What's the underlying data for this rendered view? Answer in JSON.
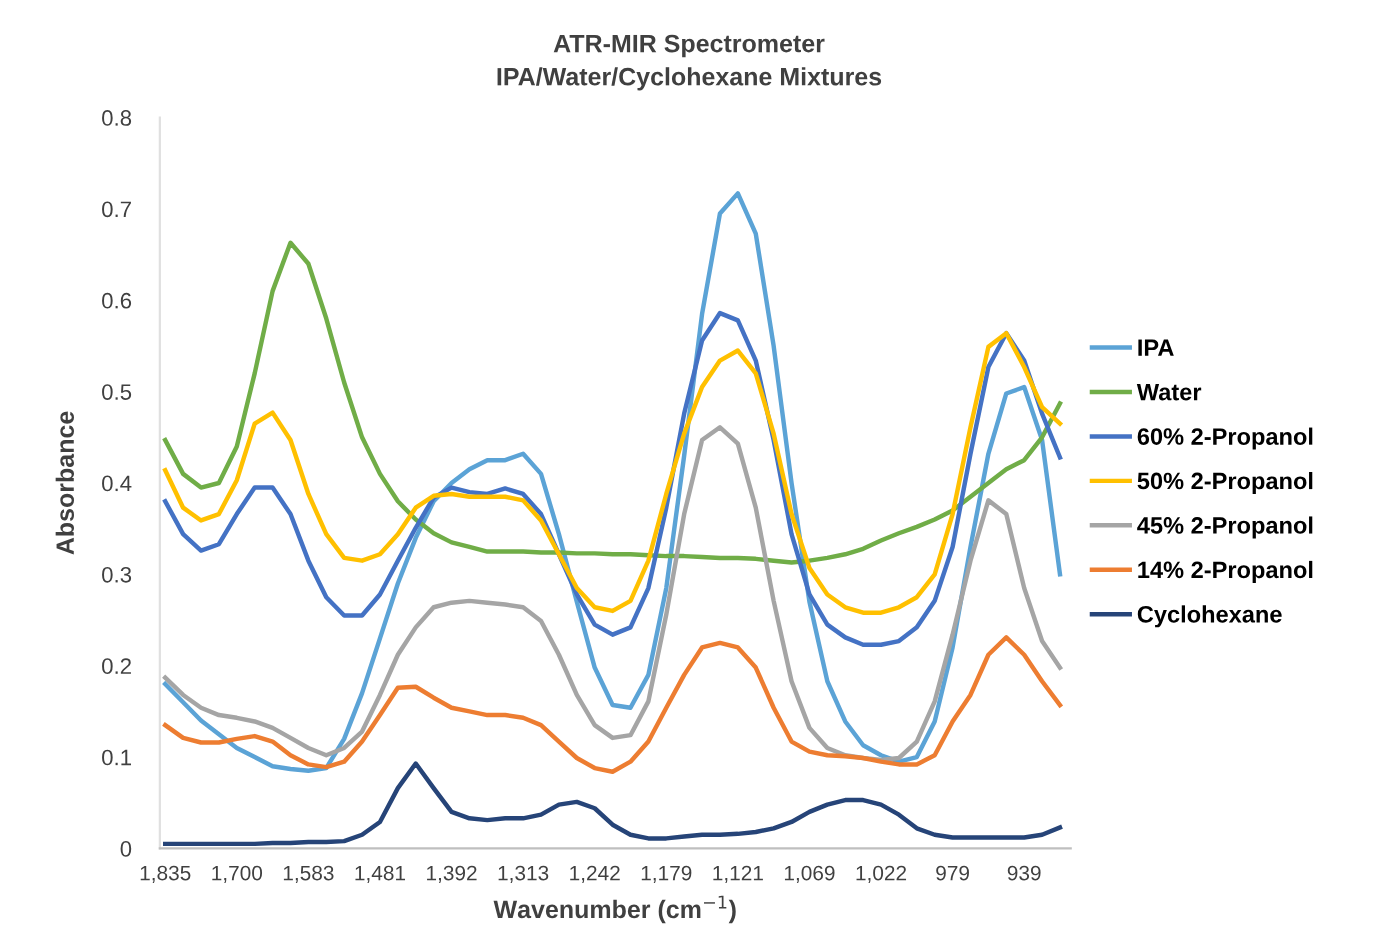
{
  "chart_data": {
    "type": "line",
    "title": "ATR-MIR Spectrometer",
    "subtitle": "IPA/Water/Cyclohexane Mixtures",
    "xlabel": "Wavenumber (cm$^{−1}$)",
    "ylabel": "Absorbance",
    "categories": [
      "1,835",
      null,
      null,
      null,
      "1,700",
      null,
      null,
      null,
      "1,583",
      null,
      null,
      null,
      "1,481",
      null,
      null,
      null,
      "1,392",
      null,
      null,
      null,
      "1,313",
      null,
      null,
      null,
      "1,242",
      null,
      null,
      null,
      "1,179",
      null,
      null,
      null,
      "1,121",
      null,
      null,
      null,
      "1,069",
      null,
      null,
      null,
      "1,022",
      null,
      null,
      null,
      "979",
      null,
      null,
      null,
      "939",
      null,
      null
    ],
    "ylim": [
      0,
      0.8
    ],
    "yticks": [
      0,
      0.1,
      0.2,
      0.3,
      0.4,
      0.5,
      0.6,
      0.7,
      0.8
    ],
    "grid": false,
    "legend": "right",
    "marker": "none",
    "line_style": "solid",
    "series": [
      {
        "name": "IPA",
        "color": "#5ba3d6",
        "values": [
          0.18,
          0.16,
          0.14,
          0.125,
          0.11,
          0.1,
          0.09,
          0.087,
          0.085,
          0.088,
          0.12,
          0.17,
          0.23,
          0.29,
          0.34,
          0.38,
          0.4,
          0.415,
          0.425,
          0.425,
          0.432,
          0.41,
          0.344,
          0.27,
          0.198,
          0.157,
          0.154,
          0.19,
          0.285,
          0.43,
          0.585,
          0.695,
          0.717,
          0.673,
          0.55,
          0.4,
          0.27,
          0.183,
          0.139,
          0.113,
          0.102,
          0.095,
          0.1,
          0.139,
          0.22,
          0.33,
          0.432,
          0.498,
          0.505,
          0.447,
          0.3
        ]
      },
      {
        "name": "Water",
        "color": "#70ad47",
        "values": [
          0.447,
          0.41,
          0.395,
          0.4,
          0.44,
          0.52,
          0.61,
          0.663,
          0.64,
          0.58,
          0.51,
          0.45,
          0.41,
          0.38,
          0.36,
          0.345,
          0.335,
          0.33,
          0.325,
          0.325,
          0.325,
          0.324,
          0.324,
          0.323,
          0.323,
          0.322,
          0.322,
          0.321,
          0.32,
          0.32,
          0.319,
          0.318,
          0.318,
          0.317,
          0.315,
          0.313,
          0.315,
          0.318,
          0.322,
          0.328,
          0.337,
          0.345,
          0.352,
          0.36,
          0.37,
          0.385,
          0.4,
          0.415,
          0.425,
          0.45,
          0.487
        ]
      },
      {
        "name": "60% 2-Propanol",
        "color": "#4472c4",
        "values": [
          0.38,
          0.344,
          0.326,
          0.333,
          0.366,
          0.395,
          0.395,
          0.366,
          0.315,
          0.275,
          0.255,
          0.255,
          0.278,
          0.315,
          0.351,
          0.384,
          0.395,
          0.39,
          0.388,
          0.394,
          0.388,
          0.366,
          0.322,
          0.278,
          0.245,
          0.234,
          0.242,
          0.285,
          0.373,
          0.476,
          0.556,
          0.586,
          0.578,
          0.534,
          0.447,
          0.344,
          0.278,
          0.245,
          0.231,
          0.223,
          0.223,
          0.227,
          0.242,
          0.271,
          0.33,
          0.432,
          0.527,
          0.564,
          0.534,
          0.476,
          0.428
        ]
      },
      {
        "name": "50% 2-Propanol",
        "color": "#ffc000",
        "values": [
          0.414,
          0.373,
          0.359,
          0.366,
          0.403,
          0.465,
          0.477,
          0.447,
          0.388,
          0.344,
          0.318,
          0.315,
          0.322,
          0.344,
          0.373,
          0.386,
          0.388,
          0.385,
          0.385,
          0.385,
          0.381,
          0.359,
          0.322,
          0.285,
          0.264,
          0.26,
          0.271,
          0.315,
          0.388,
          0.454,
          0.505,
          0.534,
          0.545,
          0.52,
          0.454,
          0.366,
          0.307,
          0.278,
          0.264,
          0.258,
          0.258,
          0.264,
          0.275,
          0.3,
          0.366,
          0.461,
          0.549,
          0.564,
          0.527,
          0.483,
          0.465
        ]
      },
      {
        "name": "45% 2-Propanol",
        "color": "#a5a5a5",
        "values": [
          0.187,
          0.168,
          0.154,
          0.146,
          0.143,
          0.139,
          0.132,
          0.121,
          0.11,
          0.102,
          0.11,
          0.128,
          0.168,
          0.212,
          0.242,
          0.264,
          0.269,
          0.271,
          0.269,
          0.267,
          0.264,
          0.249,
          0.212,
          0.168,
          0.135,
          0.121,
          0.124,
          0.161,
          0.256,
          0.366,
          0.447,
          0.461,
          0.443,
          0.373,
          0.271,
          0.183,
          0.132,
          0.11,
          0.102,
          0.099,
          0.097,
          0.099,
          0.117,
          0.161,
          0.234,
          0.315,
          0.381,
          0.366,
          0.285,
          0.227,
          0.198
        ]
      },
      {
        "name": "14% 2-Propanol",
        "color": "#ed7d31",
        "values": [
          0.135,
          0.121,
          0.116,
          0.116,
          0.12,
          0.123,
          0.117,
          0.102,
          0.092,
          0.089,
          0.095,
          0.117,
          0.146,
          0.176,
          0.177,
          0.165,
          0.154,
          0.15,
          0.146,
          0.146,
          0.143,
          0.135,
          0.117,
          0.099,
          0.088,
          0.084,
          0.095,
          0.117,
          0.154,
          0.19,
          0.22,
          0.225,
          0.22,
          0.198,
          0.154,
          0.117,
          0.106,
          0.102,
          0.101,
          0.099,
          0.095,
          0.092,
          0.092,
          0.102,
          0.139,
          0.168,
          0.212,
          0.231,
          0.212,
          0.183,
          0.157
        ]
      },
      {
        "name": "Cyclohexane",
        "color": "#264478",
        "values": [
          0.005,
          0.005,
          0.005,
          0.005,
          0.005,
          0.005,
          0.006,
          0.006,
          0.007,
          0.007,
          0.008,
          0.015,
          0.029,
          0.066,
          0.093,
          0.066,
          0.04,
          0.033,
          0.031,
          0.033,
          0.033,
          0.037,
          0.048,
          0.051,
          0.044,
          0.026,
          0.015,
          0.011,
          0.011,
          0.013,
          0.015,
          0.015,
          0.016,
          0.018,
          0.022,
          0.029,
          0.04,
          0.048,
          0.053,
          0.053,
          0.048,
          0.037,
          0.022,
          0.015,
          0.012,
          0.012,
          0.012,
          0.012,
          0.012,
          0.015,
          0.023
        ]
      }
    ]
  }
}
